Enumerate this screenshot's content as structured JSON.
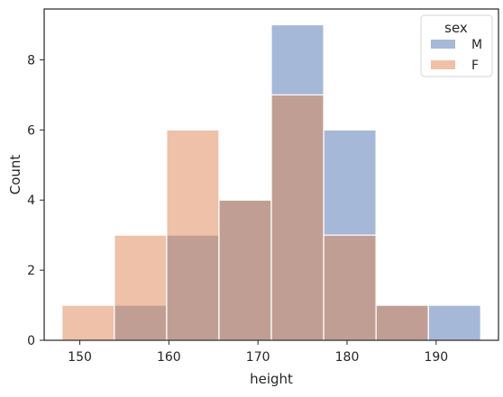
{
  "chart_data": {
    "type": "bar",
    "xlabel": "height",
    "ylabel": "Count",
    "xlim": [
      146,
      197
    ],
    "ylim": [
      0,
      9.45
    ],
    "xticks": [
      150,
      160,
      170,
      180,
      190
    ],
    "yticks": [
      0,
      2,
      4,
      6,
      8
    ],
    "bin_edges": [
      148.0,
      153.875,
      159.75,
      165.625,
      171.5,
      177.375,
      183.25,
      189.125,
      195.0
    ],
    "legend": {
      "title": "sex",
      "placement": "top-right",
      "entries": [
        "M",
        "F"
      ]
    },
    "series": [
      {
        "name": "M",
        "color": "#4c72b0",
        "values": [
          0,
          1,
          3,
          4,
          9,
          6,
          1,
          1
        ]
      },
      {
        "name": "F",
        "color": "#dd8452",
        "values": [
          1,
          3,
          6,
          4,
          7,
          3,
          1,
          0
        ]
      }
    ],
    "overlap_color": "#9b91a3",
    "grid": false
  }
}
